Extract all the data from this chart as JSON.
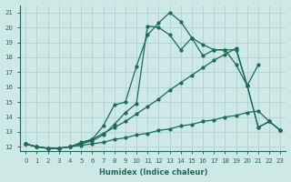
{
  "xlabel": "Humidex (Indice chaleur)",
  "background_color": "#cde8e5",
  "grid_color": "#aacfcc",
  "line_color": "#1a6b5a",
  "xlim": [
    -0.5,
    23.5
  ],
  "ylim": [
    11.7,
    21.5
  ],
  "xticks": [
    0,
    1,
    2,
    3,
    4,
    5,
    6,
    7,
    8,
    9,
    10,
    11,
    12,
    13,
    14,
    15,
    16,
    17,
    18,
    19,
    20,
    21,
    22,
    23
  ],
  "yticks": [
    12,
    13,
    14,
    15,
    16,
    17,
    18,
    19,
    20,
    21
  ],
  "line1_x": [
    0,
    1,
    2,
    3,
    4,
    5,
    6,
    7,
    8,
    9,
    10,
    11,
    12,
    13,
    14,
    15,
    16,
    17,
    18,
    19,
    20,
    21,
    22,
    23
  ],
  "line1_y": [
    12.2,
    12.0,
    11.9,
    11.9,
    12.0,
    12.2,
    12.5,
    13.4,
    14.8,
    15.0,
    17.4,
    19.5,
    20.3,
    21.0,
    20.4,
    19.3,
    18.85,
    18.5,
    18.5,
    18.5,
    16.1,
    13.3,
    13.7,
    13.1
  ],
  "line2_x": [
    0,
    1,
    2,
    3,
    4,
    5,
    6,
    7,
    8,
    9,
    10,
    11,
    12,
    13,
    14,
    15,
    16,
    17,
    18,
    19,
    20,
    21,
    22,
    23
  ],
  "line2_y": [
    12.2,
    12.0,
    11.9,
    11.9,
    12.0,
    12.2,
    12.4,
    12.8,
    13.5,
    14.3,
    14.9,
    20.1,
    20.0,
    19.5,
    18.5,
    19.3,
    18.1,
    18.5,
    18.5,
    17.5,
    16.1,
    13.3,
    13.7,
    13.1
  ],
  "line3_x": [
    0,
    1,
    2,
    3,
    4,
    5,
    6,
    7,
    8,
    9,
    10,
    11,
    12,
    13,
    14,
    15,
    16,
    17,
    18,
    19,
    20,
    21
  ],
  "line3_y": [
    12.2,
    12.0,
    11.9,
    11.9,
    12.0,
    12.3,
    12.5,
    12.9,
    13.3,
    13.7,
    14.2,
    14.7,
    15.2,
    15.8,
    16.3,
    16.8,
    17.3,
    17.8,
    18.2,
    18.6,
    16.1,
    17.5
  ],
  "line4_x": [
    0,
    1,
    2,
    3,
    4,
    5,
    6,
    7,
    8,
    9,
    10,
    11,
    12,
    13,
    14,
    15,
    16,
    17,
    18,
    19,
    20,
    21,
    22,
    23
  ],
  "line4_y": [
    12.2,
    12.0,
    11.9,
    11.9,
    12.0,
    12.1,
    12.2,
    12.3,
    12.5,
    12.6,
    12.8,
    12.9,
    13.1,
    13.2,
    13.4,
    13.5,
    13.7,
    13.8,
    14.0,
    14.1,
    14.3,
    14.4,
    13.7,
    13.1
  ]
}
